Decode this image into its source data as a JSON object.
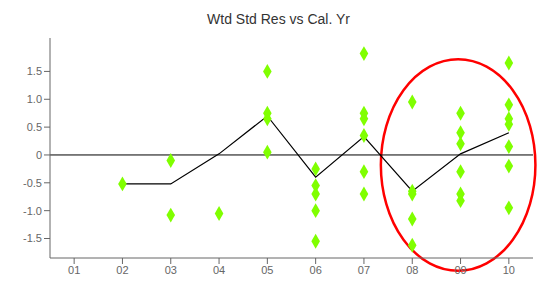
{
  "chart_data": {
    "type": "scatter",
    "title": "Wtd Std Res vs Cal. Yr",
    "xlim": [
      0.5,
      10.5
    ],
    "ylim": [
      -1.85,
      2.1
    ],
    "xticks": [
      {
        "value": 1,
        "label": "01"
      },
      {
        "value": 2,
        "label": "02"
      },
      {
        "value": 3,
        "label": "03"
      },
      {
        "value": 4,
        "label": "04"
      },
      {
        "value": 5,
        "label": "05"
      },
      {
        "value": 6,
        "label": "06"
      },
      {
        "value": 7,
        "label": "07"
      },
      {
        "value": 8,
        "label": "08"
      },
      {
        "value": 9,
        "label": "09"
      },
      {
        "value": 10,
        "label": "10"
      }
    ],
    "yticks": [
      -1.5,
      {
        "value": -1,
        "label": "-1.0"
      },
      -0.5,
      0,
      0.5,
      {
        "value": 1,
        "label": "1.0"
      },
      1.5
    ],
    "grid": false,
    "series": [
      {
        "type": "scatter",
        "marker": "diamond",
        "color": "#80FF00",
        "x": [
          2,
          3,
          3,
          4,
          5,
          5,
          5,
          5,
          6,
          6,
          6,
          6,
          6,
          7,
          7,
          7,
          7,
          7,
          7,
          8,
          8,
          8,
          8,
          8,
          9,
          9,
          9,
          9,
          9,
          9,
          10,
          10,
          10,
          10,
          10,
          10,
          10
        ],
        "values": [
          -0.52,
          -1.08,
          -0.1,
          -1.05,
          1.5,
          0.75,
          0.65,
          0.05,
          -0.25,
          -0.55,
          -0.7,
          -1.0,
          -1.55,
          1.82,
          0.75,
          0.65,
          0.35,
          -0.3,
          -0.7,
          0.95,
          -0.65,
          -0.7,
          -1.15,
          -1.62,
          0.75,
          0.4,
          0.2,
          -0.3,
          -0.7,
          -0.82,
          1.65,
          0.9,
          0.65,
          0.55,
          0.15,
          -0.2,
          -0.95
        ]
      },
      {
        "type": "line",
        "color": "black",
        "x": [
          2,
          3,
          4,
          5,
          6,
          7,
          8,
          9,
          10
        ],
        "values": [
          -0.52,
          -0.52,
          0.02,
          0.7,
          -0.4,
          0.33,
          -0.65,
          0.02,
          0.4
        ]
      }
    ],
    "reference_line": {
      "y": 0,
      "color": "black"
    },
    "ellipse": {
      "center_x": 8.95,
      "center_y": -0.18,
      "width": 3.2,
      "height": 3.8,
      "color": "red"
    }
  }
}
